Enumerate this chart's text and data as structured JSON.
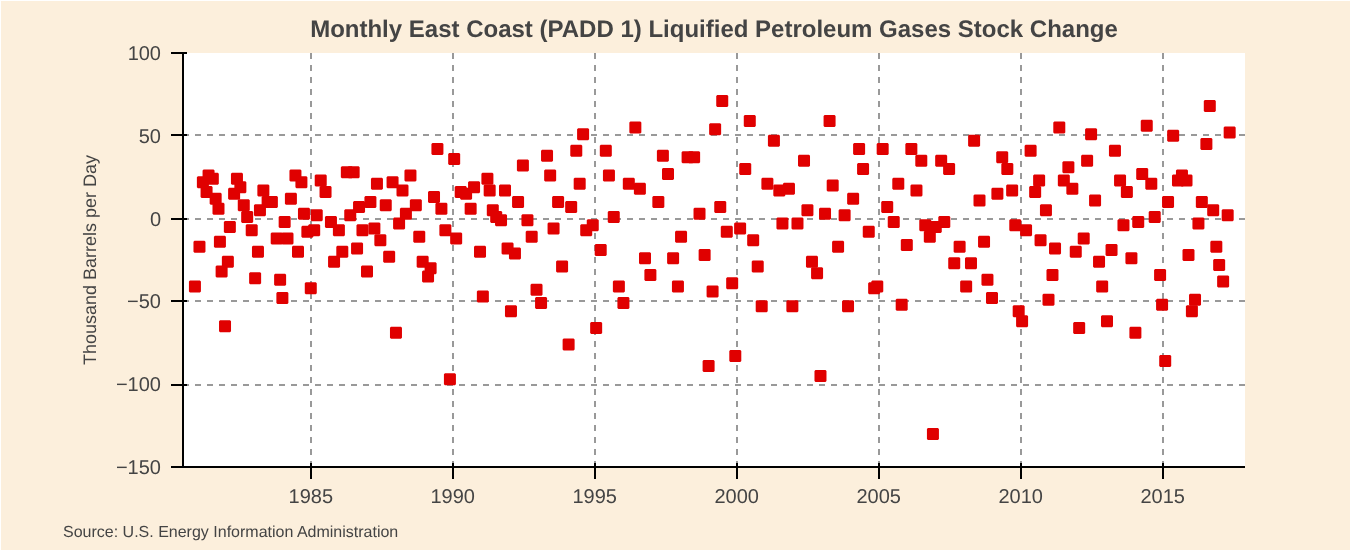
{
  "chart_data": {
    "type": "scatter",
    "title": "Monthly East Coast (PADD 1) Liquified Petroleum Gases Stock Change",
    "ylabel": "Thousand Barrels per Day",
    "annotations": [
      "Source: U.S. Energy Information Administration"
    ],
    "xlim": [
      1980.5,
      2017.9
    ],
    "xticks": [
      1985,
      1990,
      1995,
      2000,
      2005,
      2010,
      2015
    ],
    "ylim": [
      -150,
      100
    ],
    "yticks": [
      -150,
      -100,
      -50,
      0,
      50,
      100
    ],
    "grid": true,
    "marker": "square",
    "x": [
      1980.92,
      1981.08,
      1981.2,
      1981.33,
      1981.4,
      1981.55,
      1981.65,
      1981.75,
      1981.8,
      1981.86,
      1981.98,
      1982.08,
      1982.15,
      1982.3,
      1982.4,
      1982.52,
      1982.64,
      1982.76,
      1982.92,
      1983.04,
      1983.14,
      1983.21,
      1983.33,
      1983.48,
      1983.63,
      1983.8,
      1983.92,
      1984.0,
      1984.08,
      1984.18,
      1984.3,
      1984.46,
      1984.55,
      1984.67,
      1984.76,
      1984.88,
      1985.0,
      1985.12,
      1985.21,
      1985.35,
      1985.52,
      1985.71,
      1985.82,
      1985.99,
      1986.11,
      1986.27,
      1986.39,
      1986.51,
      1986.63,
      1986.7,
      1986.82,
      1986.98,
      1987.1,
      1987.24,
      1987.33,
      1987.45,
      1987.64,
      1987.76,
      1987.88,
      1988.0,
      1988.11,
      1988.23,
      1988.35,
      1988.51,
      1988.7,
      1988.82,
      1988.94,
      1989.13,
      1989.22,
      1989.34,
      1989.46,
      1989.6,
      1989.74,
      1989.9,
      1990.05,
      1990.12,
      1990.28,
      1990.47,
      1990.63,
      1990.75,
      1990.96,
      1991.06,
      1991.22,
      1991.3,
      1991.41,
      1991.53,
      1991.7,
      1991.84,
      1991.93,
      1992.05,
      1992.19,
      1992.3,
      1992.47,
      1992.63,
      1992.78,
      1992.95,
      1993.11,
      1993.32,
      1993.43,
      1993.55,
      1993.71,
      1993.85,
      1994.08,
      1994.17,
      1994.35,
      1994.47,
      1994.59,
      1994.7,
      1994.93,
      1995.05,
      1995.21,
      1995.39,
      1995.5,
      1995.67,
      1995.85,
      1996.01,
      1996.2,
      1996.43,
      1996.59,
      1996.77,
      1996.96,
      1997.24,
      1997.4,
      1997.58,
      1997.76,
      1997.93,
      1998.04,
      1998.27,
      1998.5,
      1998.69,
      1998.87,
      1999.01,
      1999.15,
      1999.24,
      1999.42,
      1999.49,
      1999.65,
      1999.84,
      1999.95,
      2000.12,
      2000.3,
      2000.46,
      2000.58,
      2000.74,
      2000.88,
      2001.08,
      2001.31,
      2001.5,
      2001.61,
      2001.84,
      2001.96,
      2002.14,
      2002.37,
      2002.49,
      2002.65,
      2002.83,
      2002.95,
      2003.11,
      2003.27,
      2003.38,
      2003.57,
      2003.8,
      2003.92,
      2004.1,
      2004.31,
      2004.45,
      2004.65,
      2004.84,
      2004.95,
      2005.14,
      2005.3,
      2005.53,
      2005.69,
      2005.81,
      2005.99,
      2006.15,
      2006.33,
      2006.5,
      2006.64,
      2006.8,
      2006.91,
      2007.01,
      2007.2,
      2007.31,
      2007.48,
      2007.66,
      2007.85,
      2008.08,
      2008.25,
      2008.36,
      2008.55,
      2008.71,
      2008.83,
      2008.99,
      2009.18,
      2009.35,
      2009.53,
      2009.7,
      2009.81,
      2009.93,
      2010.05,
      2010.19,
      2010.35,
      2010.51,
      2010.65,
      2010.7,
      2010.89,
      2010.98,
      2011.12,
      2011.21,
      2011.36,
      2011.52,
      2011.68,
      2011.82,
      2011.94,
      2012.06,
      2012.22,
      2012.34,
      2012.48,
      2012.62,
      2012.76,
      2012.87,
      2013.04,
      2013.2,
      2013.32,
      2013.5,
      2013.62,
      2013.74,
      2013.9,
      2014.04,
      2014.14,
      2014.28,
      2014.44,
      2014.6,
      2014.72,
      2014.91,
      2014.98,
      2015.09,
      2015.19,
      2015.37,
      2015.54,
      2015.68,
      2015.84,
      2015.91,
      2016.03,
      2016.14,
      2016.26,
      2016.38,
      2016.54,
      2016.66,
      2016.78,
      2016.89,
      2016.99,
      2017.13,
      2017.29,
      2017.36
    ],
    "series": [
      {
        "color": "#e00000",
        "values": [
          -41,
          -17,
          22,
          16,
          26,
          24,
          12,
          6,
          -14,
          -32,
          -65,
          -26,
          -5,
          15,
          24,
          19,
          8,
          1,
          -7,
          -36,
          -20,
          5,
          17,
          10,
          10,
          -12,
          -37,
          -48,
          -2,
          -12,
          12,
          26,
          -20,
          22,
          3,
          -8,
          -42,
          -7,
          2,
          23,
          16,
          -2,
          -26,
          -7,
          -20,
          28,
          2,
          28,
          -18,
          7,
          -7,
          -32,
          10,
          -6,
          21,
          -13,
          8,
          -23,
          22,
          -69,
          -3,
          17,
          3,
          26,
          8,
          -11,
          -26,
          -35,
          -30,
          13,
          42,
          6,
          -7,
          -97,
          36,
          -12,
          16,
          15,
          6,
          19,
          -20,
          -47,
          24,
          17,
          5,
          1,
          -1,
          17,
          -18,
          -56,
          -21,
          10,
          32,
          -1,
          -11,
          -43,
          -51,
          38,
          26,
          -6,
          10,
          -29,
          -76,
          7,
          41,
          21,
          51,
          -7,
          -4,
          -66,
          -19,
          41,
          26,
          1,
          -41,
          -51,
          21,
          55,
          18,
          -24,
          -34,
          10,
          38,
          27,
          -24,
          -41,
          -11,
          37,
          37,
          3,
          -22,
          -89,
          -44,
          54,
          7,
          71,
          -8,
          -39,
          -83,
          -6,
          30,
          59,
          -13,
          -29,
          -53,
          21,
          47,
          17,
          -3,
          18,
          -53,
          -3,
          35,
          5,
          -26,
          -33,
          -95,
          3,
          59,
          20,
          -17,
          2,
          -53,
          12,
          42,
          30,
          -8,
          -42,
          -41,
          42,
          7,
          -2,
          21,
          -52,
          -16,
          42,
          17,
          35,
          -4,
          -11,
          -130,
          -5,
          35,
          -2,
          30,
          -27,
          -17,
          -41,
          -27,
          47,
          11,
          -14,
          -37,
          -48,
          15,
          37,
          30,
          17,
          -4,
          -56,
          -62,
          -7,
          41,
          16,
          23,
          -13,
          5,
          -49,
          -34,
          -18,
          55,
          23,
          31,
          18,
          -20,
          -66,
          -12,
          35,
          51,
          11,
          -26,
          -41,
          -62,
          -19,
          41,
          23,
          -4,
          16,
          -24,
          -69,
          -2,
          27,
          56,
          21,
          1,
          -34,
          -52,
          -86,
          10,
          50,
          23,
          26,
          23,
          -22,
          -56,
          -49,
          -3,
          10,
          45,
          68,
          5,
          -17,
          -28,
          -38,
          2,
          52
        ]
      }
    ]
  }
}
